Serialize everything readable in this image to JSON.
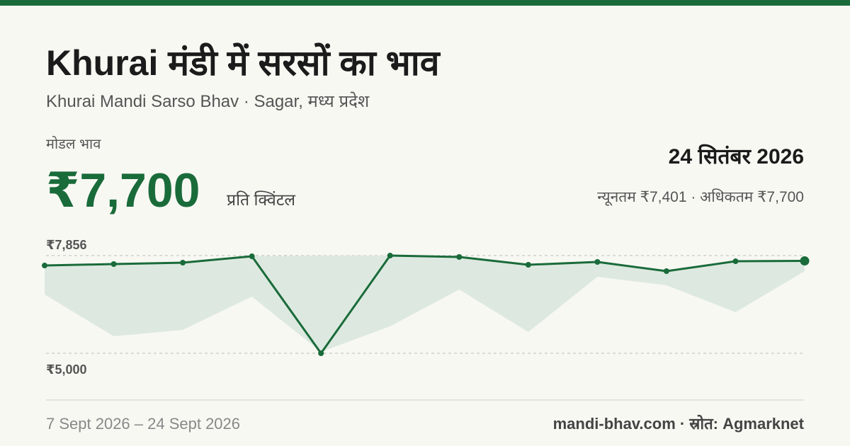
{
  "header": {
    "title": "Khurai मंडी में सरसों का भाव",
    "subtitle": "Khurai Mandi Sarso Bhav · Sagar, मध्य प्रदेश"
  },
  "price": {
    "label": "मोडल भाव",
    "value": "₹7,700",
    "unit": "प्रति क्विंटल",
    "date": "24 सितंबर 2026",
    "range": "न्यूनतम ₹7,401 · अधिकतम ₹7,700"
  },
  "chart_data": {
    "type": "line",
    "color": "#1a6b3a",
    "band_color": "#dde9e0",
    "categories": [
      null,
      null,
      null,
      null,
      null,
      null,
      null,
      null,
      null,
      null,
      null,
      null
    ],
    "values": [
      7566,
      7608,
      7649,
      7835,
      5000,
      7856,
      7815,
      7587,
      7670,
      7401,
      7690,
      7700
    ],
    "band": {
      "upper": [
        7566,
        7608,
        7649,
        7835,
        7856,
        7856,
        7815,
        7587,
        7670,
        7401,
        7690,
        7700
      ],
      "lower": [
        6717,
        5496,
        5682,
        6655,
        5041,
        5786,
        6862,
        5620,
        7235,
        6987,
        6200,
        7401
      ]
    },
    "ylim": [
      3634,
      8291
    ],
    "yticks": [
      {
        "value": 7856,
        "label": "₹7,856"
      },
      {
        "value": 5000,
        "label": "₹5,000"
      }
    ]
  },
  "footer": {
    "range": "7 Sept 2026 – 24 Sept 2026",
    "source": "mandi-bhav.com · स्रोत: Agmarknet"
  }
}
